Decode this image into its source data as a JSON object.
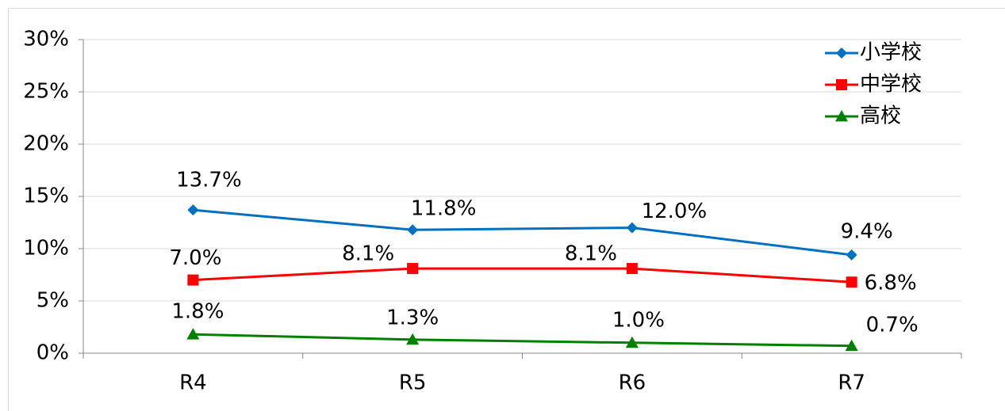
{
  "chart_data": {
    "type": "line",
    "categories": [
      "R4",
      "R5",
      "R6",
      "R7"
    ],
    "series": [
      {
        "name": "小学校",
        "color": "#0070c0",
        "marker": "diamond",
        "values": [
          13.7,
          11.8,
          12.0,
          9.4
        ],
        "value_labels": [
          "13.7%",
          "11.8%",
          "12.0%",
          "9.4%"
        ]
      },
      {
        "name": "中学校",
        "color": "#ff0000",
        "marker": "square",
        "values": [
          7.0,
          8.1,
          8.1,
          6.8
        ],
        "value_labels": [
          "7.0%",
          "8.1%",
          "8.1%",
          "6.8%"
        ]
      },
      {
        "name": "高校",
        "color": "#008000",
        "marker": "triangle",
        "values": [
          1.8,
          1.3,
          1.0,
          0.7
        ],
        "value_labels": [
          "1.8%",
          "1.3%",
          "1.0%",
          "0.7%"
        ]
      }
    ],
    "ylim": [
      0,
      30
    ],
    "yticks": [
      {
        "value": 0,
        "label": "0%"
      },
      {
        "value": 5,
        "label": "5%"
      },
      {
        "value": 10,
        "label": "10%"
      },
      {
        "value": 15,
        "label": "15%"
      },
      {
        "value": 20,
        "label": "20%"
      },
      {
        "value": 25,
        "label": "25%"
      },
      {
        "value": 30,
        "label": "30%"
      }
    ],
    "grid": true,
    "legend": "top-right"
  }
}
